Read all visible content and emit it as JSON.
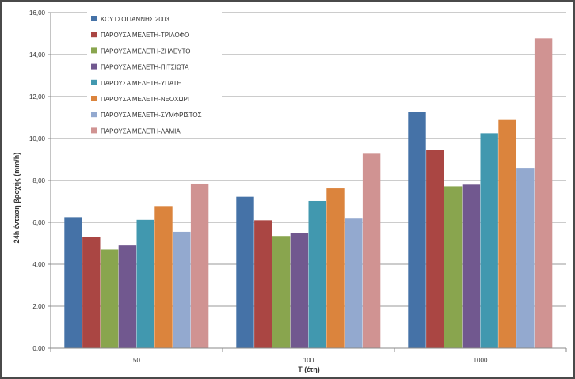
{
  "chart_data": {
    "type": "bar",
    "title": "",
    "xlabel": "T (έτη)",
    "ylabel": "24h ένταση βροχής (mm/h)",
    "categories": [
      "50",
      "100",
      "1000"
    ],
    "ylim": [
      0,
      16
    ],
    "yticks": [
      "0,00",
      "2,00",
      "4,00",
      "6,00",
      "8,00",
      "10,00",
      "12,00",
      "14,00",
      "16,00"
    ],
    "grid": true,
    "legend_position": "top-left",
    "series": [
      {
        "name": "ΚΟΥΤΣΟΓΙΑΝΝΗΣ 2003",
        "color": "#4572A7",
        "values": [
          6.25,
          7.22,
          11.25
        ]
      },
      {
        "name": "ΠΑΡΟΥΣΑ ΜΕΛΕΤΗ-ΤΡΙΛΟΦΟ",
        "color": "#AA4643",
        "values": [
          5.3,
          6.1,
          9.45
        ]
      },
      {
        "name": "ΠΑΡΟΥΣΑ ΜΕΛΕΤΗ-ΖΗΛΕΥΤΟ",
        "color": "#89A54E",
        "values": [
          4.7,
          5.35,
          7.72
        ]
      },
      {
        "name": "ΠΑΡΟΥΣΑ ΜΕΛΕΤΗ-ΠΙΤΣΙΩΤΑ",
        "color": "#71588F",
        "values": [
          4.9,
          5.5,
          7.8
        ]
      },
      {
        "name": "ΠΑΡΟΥΣΑ ΜΕΛΕΤΗ-ΥΠΑΤΗ",
        "color": "#4198AF",
        "values": [
          6.12,
          7.02,
          10.25
        ]
      },
      {
        "name": "ΠΑΡΟΥΣΑ ΜΕΛΕΤΗ-ΝΕΟΧΩΡΙ",
        "color": "#DB843D",
        "values": [
          6.78,
          7.62,
          10.88
        ]
      },
      {
        "name": "ΠΑΡΟΥΣΑ ΜΕΛΕΤΗ-ΣΥΜΦΡΙΣΤΟΣ",
        "color": "#93A9CF",
        "values": [
          5.55,
          6.18,
          8.6
        ]
      },
      {
        "name": "ΠΑΡΟΥΣΑ ΜΕΛΕΤΗ-ΛΑΜΙΑ",
        "color": "#D09392",
        "values": [
          7.85,
          9.27,
          14.78
        ]
      }
    ]
  }
}
